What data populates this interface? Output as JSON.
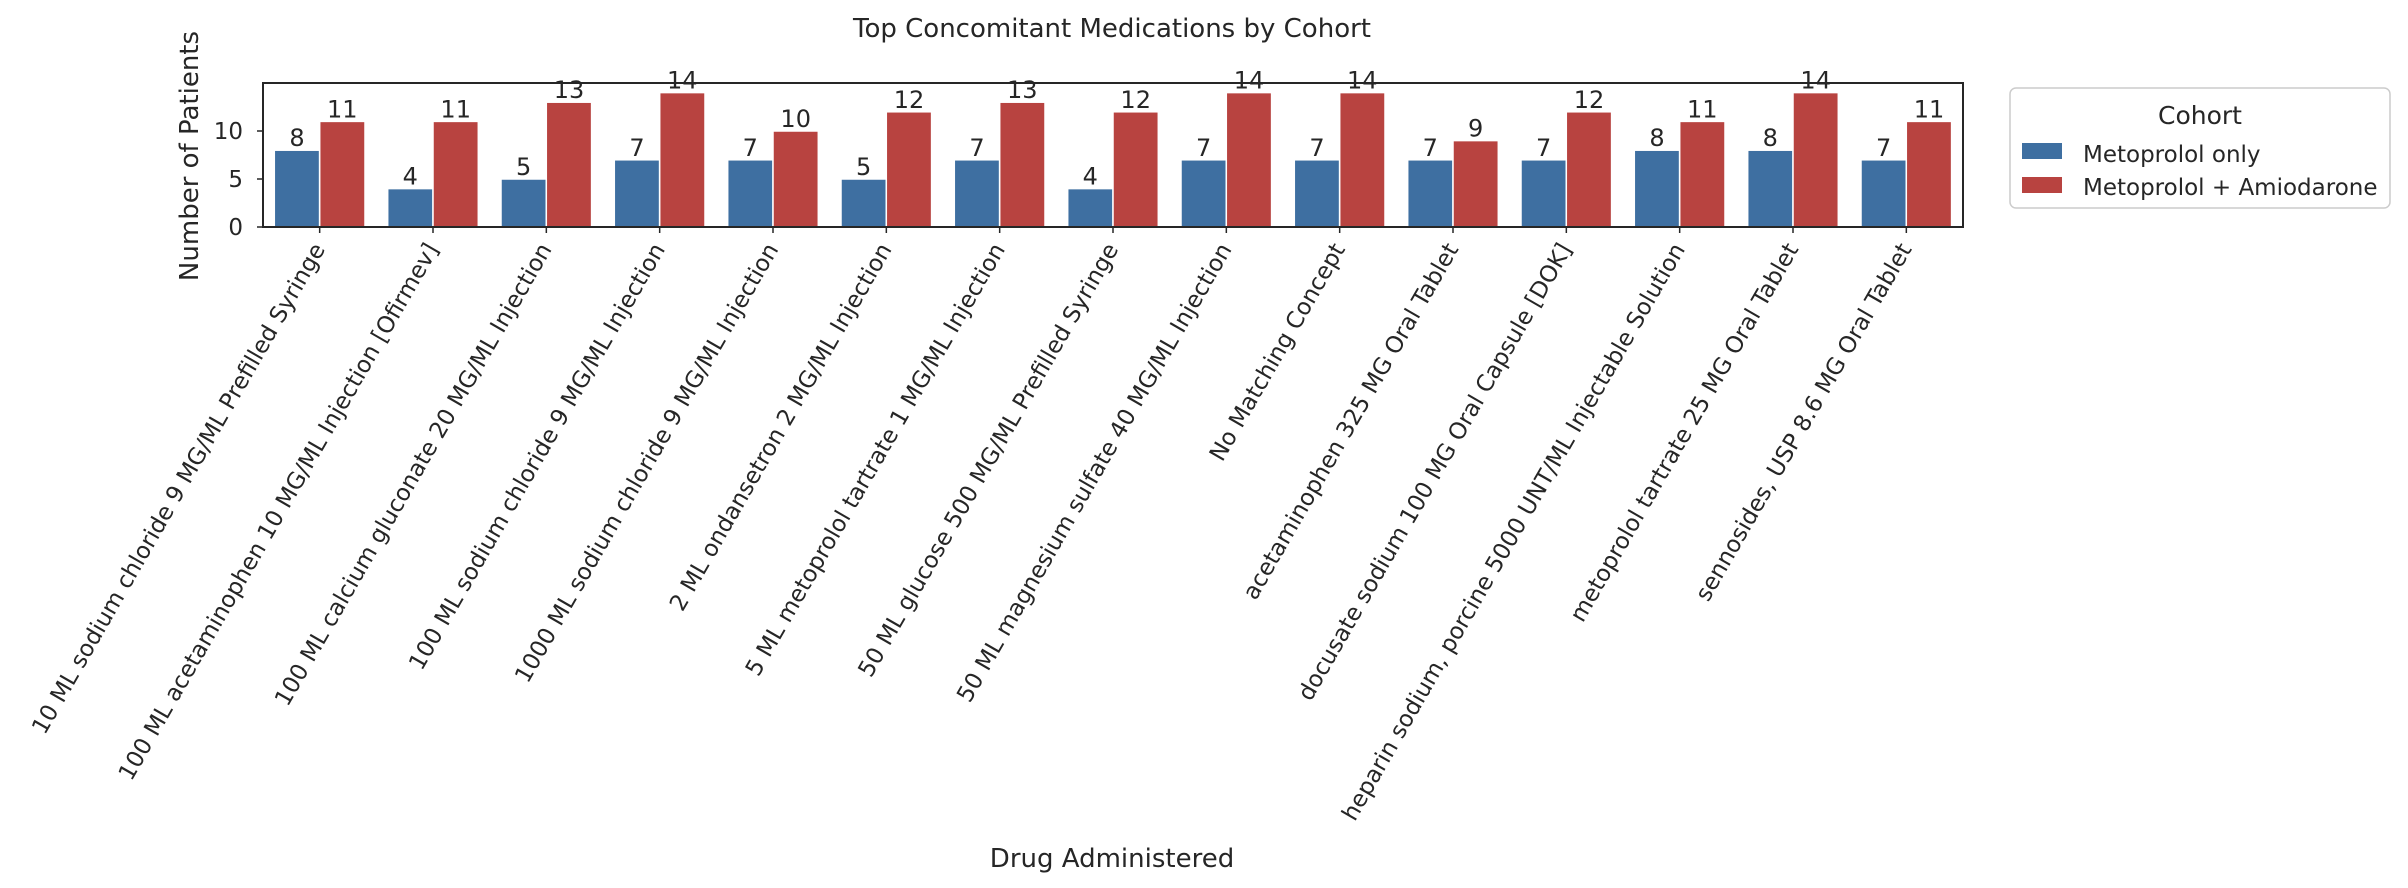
{
  "chart_data": {
    "type": "bar",
    "title": "Top Concomitant Medications by Cohort",
    "xlabel": "Drug Administered",
    "ylabel": "Number of Patients",
    "ylim": [
      0,
      15
    ],
    "yticks": [
      0,
      5,
      10
    ],
    "grid": false,
    "legend": {
      "title": "Cohort",
      "placement": "outside-right"
    },
    "categories": [
      "10 ML sodium chloride 9 MG/ML Prefilled Syringe",
      "100 ML acetaminophen 10 MG/ML Injection [Ofirmev]",
      "100 ML calcium gluconate 20 MG/ML Injection",
      "100 ML sodium chloride 9 MG/ML Injection",
      "1000 ML sodium chloride 9 MG/ML Injection",
      "2 ML ondansetron 2 MG/ML Injection",
      "5 ML metoprolol tartrate 1 MG/ML Injection",
      "50 ML glucose 500 MG/ML Prefilled Syringe",
      "50 ML magnesium sulfate 40 MG/ML Injection",
      "No Matching Concept",
      "acetaminophen 325 MG Oral Tablet",
      "docusate sodium 100 MG Oral Capsule [DOK]",
      "heparin sodium, porcine 5000 UNT/ML Injectable Solution",
      "metoprolol tartrate 25 MG Oral Tablet",
      "sennosides, USP 8.6 MG Oral Tablet"
    ],
    "series": [
      {
        "name": "Metoprolol only",
        "color": "#3e6fa1",
        "values": [
          8,
          4,
          5,
          7,
          7,
          5,
          7,
          4,
          7,
          7,
          7,
          7,
          8,
          8,
          7
        ]
      },
      {
        "name": "Metoprolol + Amiodarone",
        "color": "#b84340",
        "values": [
          11,
          11,
          13,
          14,
          10,
          12,
          13,
          12,
          14,
          14,
          9,
          12,
          11,
          14,
          11
        ]
      }
    ]
  }
}
